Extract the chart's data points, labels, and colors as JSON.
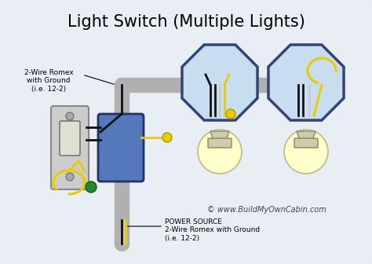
{
  "title": "Light Switch (Multiple Lights)",
  "bg_outer": "#c8d8e8",
  "bg_inner": "#e8eef4",
  "border_color": "#99aabb",
  "wire_gray": "#b0b0b0",
  "wire_black": "#111111",
  "wire_yellow": "#e8cc00",
  "wire_green": "#228833",
  "wire_white": "#cccccc",
  "switch_box_color": "#5577bb",
  "oct_face": "#c8ddf0",
  "oct_edge": "#334477",
  "bulb_glow": "#ffffcc",
  "bulb_base": "#ccccaa",
  "text_label_top": "2-Wire Romex\nwith Ground\n(i.e. 12-2)",
  "text_label_bottom": "POWER SOURCE\n2-Wire Romex with Ground\n(i.e. 12-2)",
  "text_copyright": "© www.BuildMyOwnCabin.com",
  "title_fontsize": 15,
  "label_fontsize": 6.5,
  "copyright_fontsize": 7
}
